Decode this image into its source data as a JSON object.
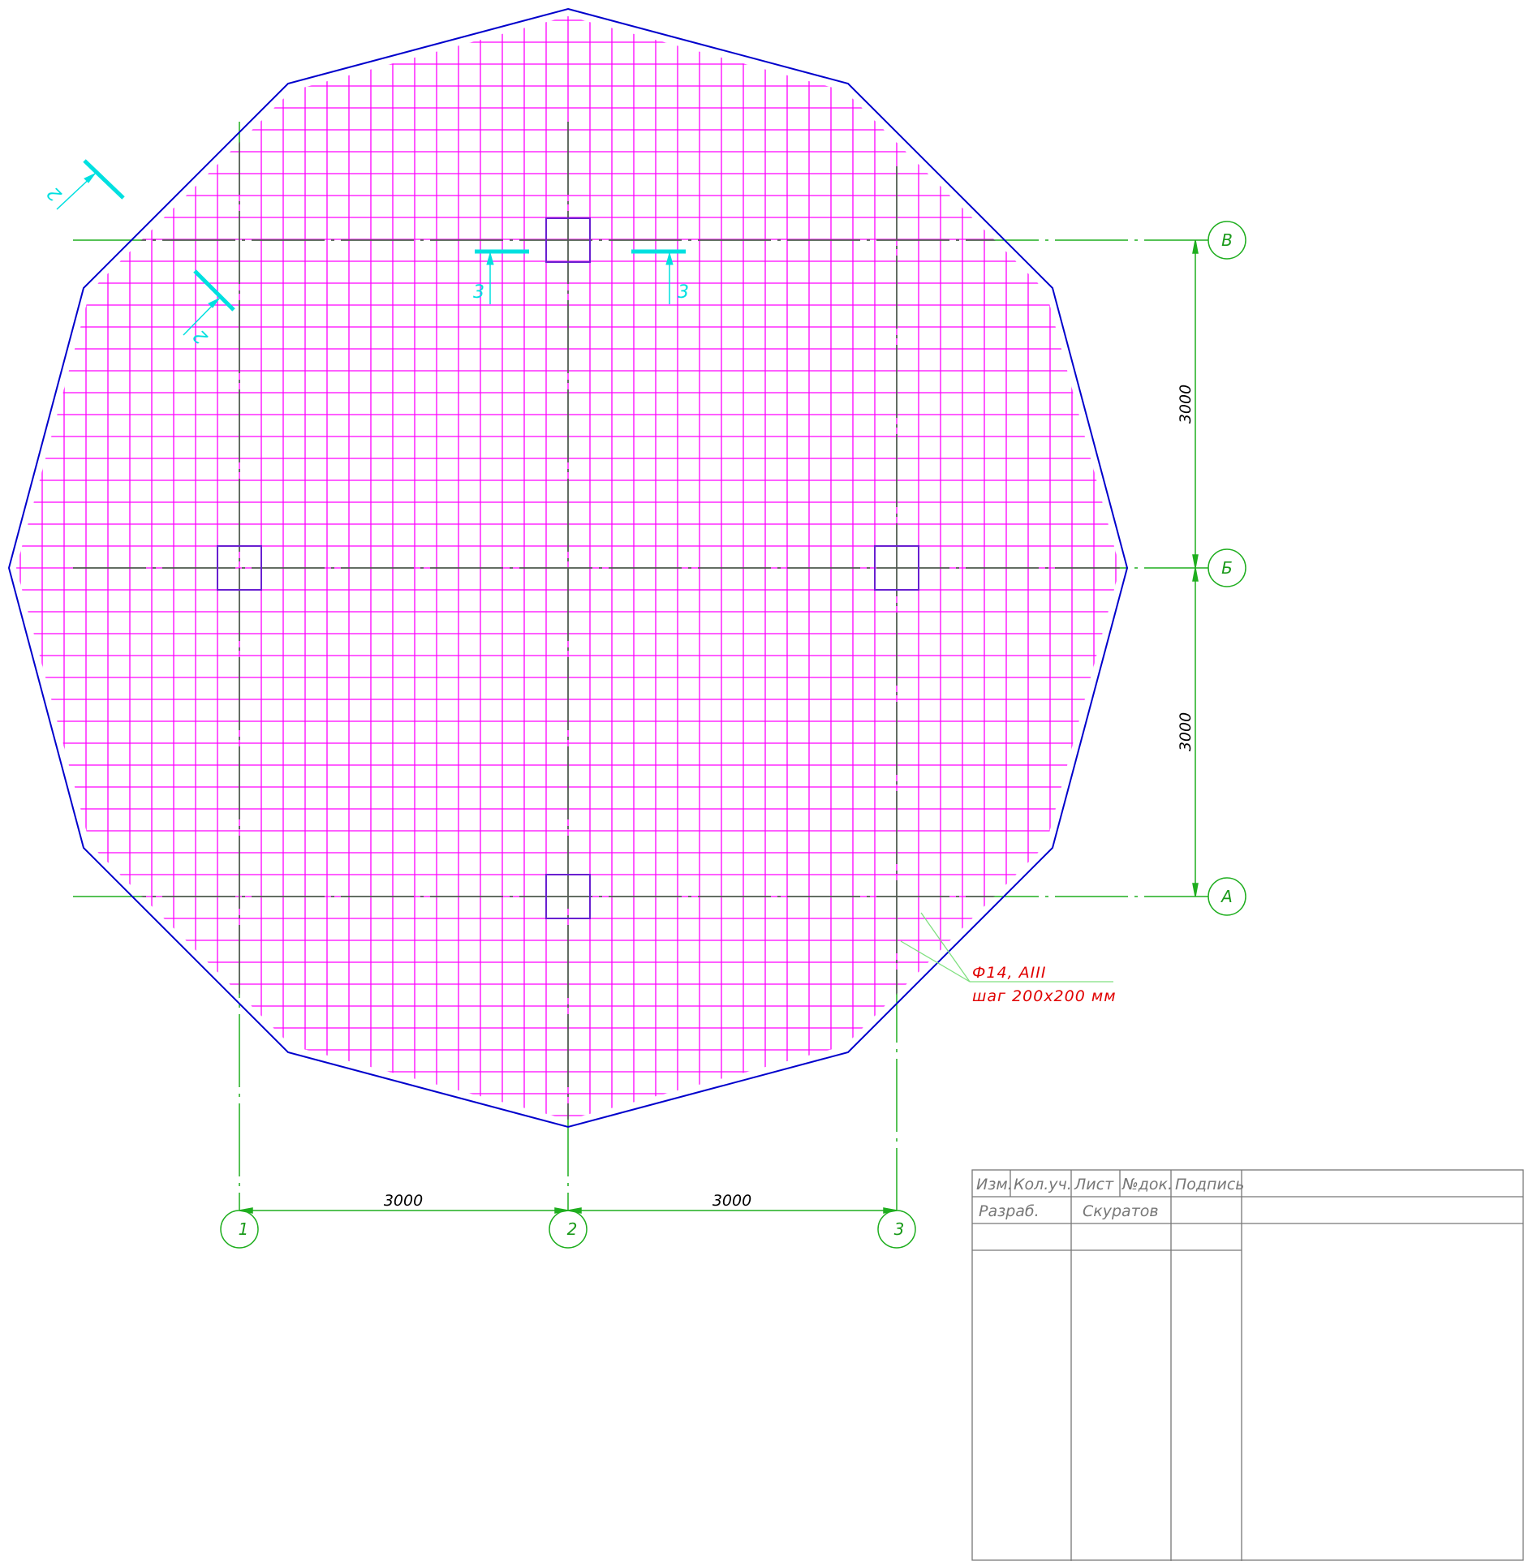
{
  "axes": {
    "columns": [
      "1",
      "2",
      "3"
    ],
    "rows": [
      "А",
      "Б",
      "В"
    ]
  },
  "dimensions": {
    "bottom": [
      "3000",
      "3000"
    ],
    "right": [
      "3000",
      "3000"
    ]
  },
  "sections": {
    "left": [
      "2",
      "2"
    ],
    "top": [
      "3",
      "3"
    ]
  },
  "annotation": {
    "line1": "Ф14, AIII",
    "line2": "шаг 200х200 мм"
  },
  "title_block": {
    "header": [
      "Изм.",
      "Кол.уч.",
      "Лист",
      "№док.",
      "Подпись"
    ],
    "developer_label": "Разраб.",
    "developer_name": "Скуратов"
  }
}
